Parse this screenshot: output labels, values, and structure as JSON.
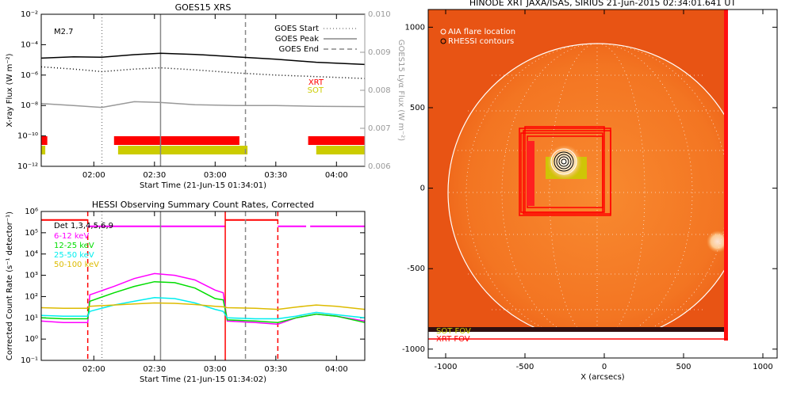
{
  "chart_data": [
    {
      "type": "line",
      "title": "GOES15 XRS",
      "xlabel": "Start Time (21-Jun-15 01:34:01)",
      "ylabel": "X-ray Flux (W m⁻²)",
      "y2label": "GOES15 Lyα Flux (W m⁻²)",
      "annotation": "M2.7",
      "x": [
        "01:34",
        "01:50",
        "02:04",
        "02:20",
        "02:33",
        "02:50",
        "03:10",
        "03:30",
        "03:50",
        "04:14"
      ],
      "xlim": [
        "01:34",
        "04:14"
      ],
      "xticks": [
        "02:00",
        "02:30",
        "03:00",
        "03:30",
        "04:00"
      ],
      "ylog": true,
      "ylim": [
        1e-12,
        0.01
      ],
      "yticks": [
        {
          "value": 1e-12,
          "label": "10⁻¹²"
        },
        {
          "value": 1e-10,
          "label": "10⁻¹⁰"
        },
        {
          "value": 1e-08,
          "label": "10⁻⁸"
        },
        {
          "value": 1e-06,
          "label": "10⁻⁶"
        },
        {
          "value": 0.0001,
          "label": "10⁻⁴"
        },
        {
          "value": 0.01,
          "label": "10⁻²"
        }
      ],
      "y2lim": [
        0.006,
        0.01
      ],
      "y2ticks": [
        0.006,
        0.007,
        0.008,
        0.009,
        {
          "value": 0.01,
          "label": "0.010"
        }
      ],
      "series": [
        {
          "color": "#000000",
          "style": "solid",
          "values": [
            1.3e-05,
            1.6e-05,
            1.5e-05,
            2.2e-05,
            2.7e-05,
            2.3e-05,
            1.6e-05,
            1.1e-05,
            7e-06,
            5e-06
          ]
        },
        {
          "color": "#000000",
          "style": "dotted",
          "values": [
            3.5e-06,
            2.5e-06,
            1.7e-06,
            2.5e-06,
            3e-06,
            2.2e-06,
            1.4e-06,
            1e-06,
            8e-07,
            6e-07
          ]
        },
        {
          "color": "#999999",
          "style": "solid",
          "axis": "y2",
          "values": [
            0.00765,
            0.0076,
            0.00755,
            0.0077,
            0.00768,
            0.00762,
            0.0076,
            0.0076,
            0.00758,
            0.00757
          ]
        }
      ],
      "legend": "upper right",
      "markers": [
        {
          "name": "GOES Start",
          "x": "02:04",
          "style": "dotted",
          "color": "#888888"
        },
        {
          "name": "GOES Peak",
          "x": "02:33",
          "style": "solid",
          "color": "#888888"
        },
        {
          "name": "GOES End",
          "x": "03:15",
          "style": "dashed",
          "color": "#888888"
        }
      ],
      "coverage": [
        {
          "name": "XRT",
          "color": "#ff0000",
          "intervals": [
            [
              "01:34",
              "01:37"
            ],
            [
              "02:10",
              "03:12"
            ],
            [
              "03:46",
              "04:14"
            ]
          ]
        },
        {
          "name": "SOT",
          "color": "#cccc00",
          "intervals": [
            [
              "01:34",
              "01:36"
            ],
            [
              "02:12",
              "03:16"
            ],
            [
              "03:50",
              "04:14"
            ]
          ]
        }
      ]
    },
    {
      "type": "line",
      "title": "HESSI Observing Summary Count Rates, Corrected",
      "xlabel": "Start Time (21-Jun-15 01:34:02)",
      "ylabel": "Corrected Count Rate (s⁻¹ detector⁻¹)",
      "legend_title": "Det 1,3,4,5,6,9",
      "x": [
        "01:34",
        "01:45",
        "01:57",
        "01:58",
        "02:10",
        "02:20",
        "02:30",
        "02:40",
        "02:50",
        "03:00",
        "03:04",
        "03:06",
        "03:20",
        "03:31",
        "03:40",
        "03:50",
        "04:00",
        "04:14"
      ],
      "xlim": [
        "01:34",
        "04:14"
      ],
      "xticks": [
        "02:00",
        "02:30",
        "03:00",
        "03:30",
        "04:00"
      ],
      "ylog": true,
      "ylim": [
        0.1,
        1000000
      ],
      "yticks": [
        {
          "value": 0.1,
          "label": "10⁻¹"
        },
        {
          "value": 1,
          "label": "10⁰"
        },
        {
          "value": 10,
          "label": "10¹"
        },
        {
          "value": 100,
          "label": "10²"
        },
        {
          "value": 1000,
          "label": "10³"
        },
        {
          "value": 10000,
          "label": "10⁴"
        },
        {
          "value": 100000,
          "label": "10⁵"
        },
        {
          "value": 1000000,
          "label": "10⁶"
        }
      ],
      "series": [
        {
          "name": "6-12 keV",
          "color": "#ff00ff",
          "style": "solid",
          "values": [
            7,
            6,
            6,
            120,
            300,
            700,
            1200,
            1000,
            600,
            200,
            150,
            7,
            6,
            5,
            10,
            15,
            12,
            7
          ]
        },
        {
          "name": "12-25 keV",
          "color": "#00dd00",
          "style": "solid",
          "values": [
            10,
            9,
            9,
            60,
            150,
            300,
            500,
            450,
            250,
            80,
            70,
            8,
            7,
            6,
            10,
            15,
            12,
            6
          ]
        },
        {
          "name": "25-50 keV",
          "color": "#00eeee",
          "style": "solid",
          "values": [
            13,
            12,
            12,
            20,
            40,
            60,
            90,
            80,
            50,
            25,
            20,
            10,
            9,
            9,
            12,
            18,
            14,
            10
          ]
        },
        {
          "name": "50-100 keV",
          "color": "#ddbb00",
          "style": "solid",
          "values": [
            30,
            28,
            28,
            35,
            40,
            45,
            50,
            48,
            42,
            35,
            33,
            30,
            28,
            25,
            32,
            40,
            35,
            25
          ]
        }
      ],
      "legend": "upper left",
      "markers": [
        {
          "x": "02:04",
          "style": "dotted",
          "color": "#888888"
        },
        {
          "x": "02:33",
          "style": "solid",
          "color": "#888888"
        },
        {
          "x": "03:15",
          "style": "dashed",
          "color": "#888888"
        },
        {
          "x": "01:57",
          "style": "dashed",
          "color": "#ff0000"
        },
        {
          "x": "03:05",
          "style": "solid",
          "color": "#ff0000"
        },
        {
          "x": "03:31",
          "style": "dashed",
          "color": "#ff0000"
        }
      ],
      "flags": [
        {
          "color": "#ff0000",
          "level": 400000,
          "intervals": [
            [
              "01:34",
              "01:57"
            ],
            [
              "03:05",
              "03:31"
            ]
          ]
        },
        {
          "color": "#ff00ff",
          "level": 200000,
          "intervals": [
            [
              "01:57",
              "03:05"
            ],
            [
              "03:31",
              "03:45"
            ],
            [
              "03:47",
              "04:14"
            ]
          ]
        }
      ]
    },
    {
      "type": "image",
      "title": "HINODE XRT JAXA/ISAS, SIRIUS 21-Jun-2015 02:34:01.641 UT",
      "xlabel": "X (arcsecs)",
      "xlim": [
        -1110,
        1090
      ],
      "xticks": [
        -1000,
        -500,
        0,
        500,
        1000
      ],
      "ylim": [
        -1055,
        1110
      ],
      "yticks": [
        -1000,
        -500,
        0,
        500,
        1000
      ],
      "legend": [
        {
          "name": "AIA flare location",
          "color": "#ffffff"
        },
        {
          "name": "RHESSI contours",
          "color": "#ffffff"
        },
        {
          "name": "SOT FOV",
          "color": "#cccc00"
        },
        {
          "name": "XRT FOV",
          "color": "#ff0000"
        }
      ]
    }
  ]
}
